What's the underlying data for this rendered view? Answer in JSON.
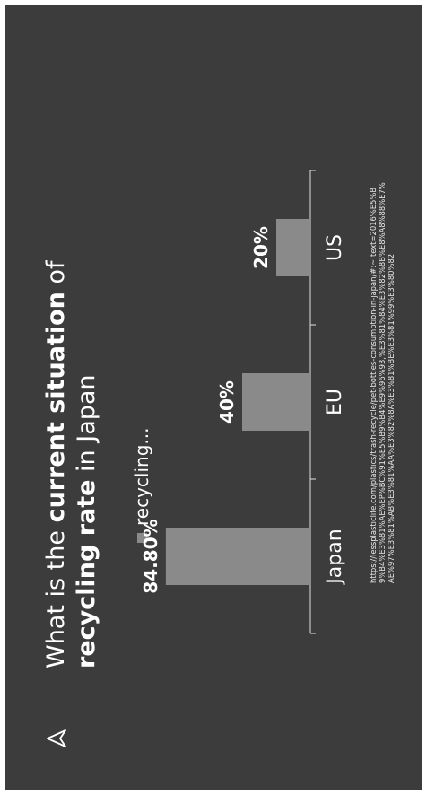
{
  "title": {
    "part1": "What is the ",
    "bold1": "current situation",
    "part2": " of",
    "bold2": "recycling rate",
    "part3": " in Japan"
  },
  "legend": {
    "label": "recycling..."
  },
  "colors": {
    "background": "#3c3c3c",
    "bar": "#8a8a8a",
    "text": "#ffffff"
  },
  "chart_data": {
    "type": "bar",
    "categories": [
      "Japan",
      "EU",
      "US"
    ],
    "series": [
      {
        "name": "recycling...",
        "values": [
          84.8,
          40,
          20
        ]
      }
    ],
    "data_labels": [
      "84.80%",
      "40%",
      "20%"
    ],
    "ylim": [
      0,
      100
    ],
    "grid": false,
    "legend_position": "top"
  },
  "source": "https://lessplasticlife.com/plastics/trash-recycle/pet-bottles-consumption-in-japan/#:~:text=2016%E5%B9%B4%E3%81%AE%EP%BC%91%E5%B9%B4%E9%96%93,%E3%81%84%E3%82%8B%E8%A8%88%E7%AE%97%E3%81%AB%E3%81%AA%E3%82%8A%E3%81%BE%E3%81%99%E3%80%82"
}
